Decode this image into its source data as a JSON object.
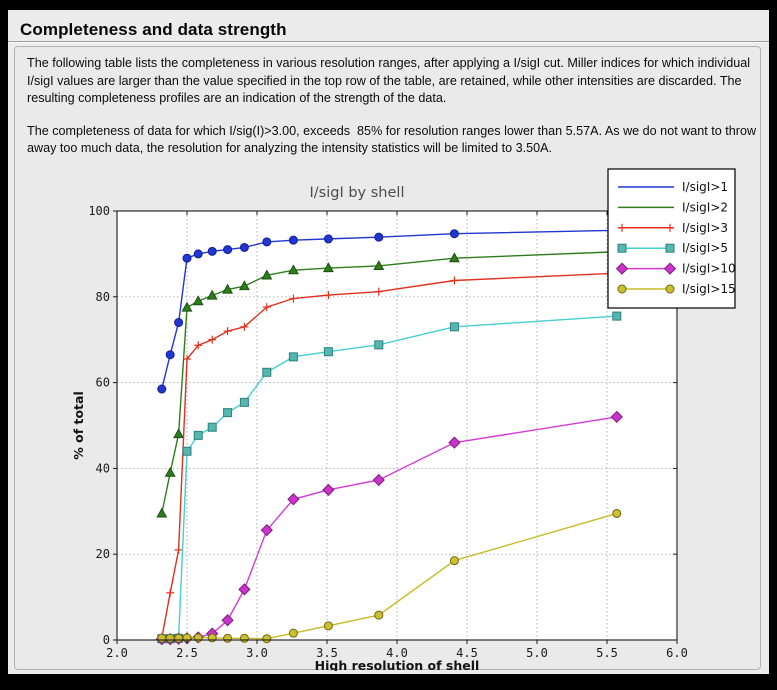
{
  "page": {
    "title": "Completeness and data strength",
    "paragraph1": "The following table lists the completeness in various resolution ranges, after applying a I/sigI cut. Miller indices for which individual I/sigI values are larger than the value specified in the top row of the table, are retained, while other intensities are discarded. The resulting completeness profiles are an indication of the strength of the data.",
    "paragraph2": "The completeness of data for which I/sig(I)>3.00, exceeds  85% for resolution ranges lower than 5.57A. As we do not want to throw away too much data, the resolution for analyzing the intensity statistics will be limited to 3.50A."
  },
  "chart_data": {
    "type": "line",
    "title": "I/sigI by shell",
    "xlabel": "High resolution of shell",
    "ylabel": "% of total",
    "xlim": [
      2.0,
      6.0
    ],
    "ylim": [
      0,
      100
    ],
    "xtick_labels": [
      "2.0",
      "2.5",
      "3.0",
      "3.5",
      "4.0",
      "4.5",
      "5.0",
      "5.5",
      "6.0"
    ],
    "ytick_labels": [
      "0",
      "20",
      "40",
      "60",
      "80",
      "100"
    ],
    "grid": true,
    "legend_position": "upper right",
    "x": [
      2.32,
      2.38,
      2.44,
      2.5,
      2.58,
      2.68,
      2.79,
      2.91,
      3.07,
      3.26,
      3.51,
      3.87,
      4.41,
      5.57
    ],
    "series": [
      {
        "name": "I/sigI>1",
        "color": "#2136d4",
        "marker": "circle",
        "marker_fill": "#2136d4",
        "marker_edge": "#101f8e",
        "legend_marker": false,
        "values": [
          58.5,
          66.5,
          74,
          89,
          90,
          90.6,
          91,
          91.5,
          92.8,
          93.2,
          93.5,
          93.9,
          94.7,
          95.5
        ]
      },
      {
        "name": "I/sigI>2",
        "color": "#2e7d1b",
        "marker": "triangle",
        "marker_fill": "#2e7d1b",
        "marker_edge": "#1c4f10",
        "legend_marker": false,
        "values": [
          29.5,
          39,
          48,
          77.5,
          79,
          80.3,
          81.7,
          82.5,
          85,
          86.2,
          86.7,
          87.2,
          89,
          90.5
        ]
      },
      {
        "name": "I/sigI>3",
        "color": "#e2301d",
        "marker": "plus",
        "marker_fill": "#e2301d",
        "marker_edge": "#e2301d",
        "legend_marker": true,
        "values": [
          0.5,
          11,
          21,
          65.5,
          68.7,
          70,
          72,
          73,
          77.6,
          79.6,
          80.4,
          81.2,
          83.8,
          85.5
        ]
      },
      {
        "name": "I/sigI>5",
        "color": "#45cfcf",
        "marker": "square",
        "marker_fill": "#55b7af",
        "marker_edge": "#2b827b",
        "legend_marker": true,
        "values": [
          0.3,
          0.3,
          0.4,
          44,
          47.7,
          49.6,
          53,
          55.4,
          62.4,
          66,
          67.2,
          68.8,
          73,
          75.5
        ]
      },
      {
        "name": "I/sigI>10",
        "color": "#d53ad5",
        "marker": "diamond",
        "marker_fill": "#c935c9",
        "marker_edge": "#7e187e",
        "legend_marker": true,
        "values": [
          0.2,
          0.2,
          0.3,
          0.4,
          0.6,
          1.5,
          4.6,
          11.8,
          25.6,
          32.8,
          35,
          37.3,
          46,
          52
        ]
      },
      {
        "name": "I/sigI>15",
        "color": "#c6bc25",
        "marker": "circle",
        "marker_fill": "#ccc032",
        "marker_edge": "#6f6410",
        "legend_marker": true,
        "values": [
          0.4,
          0.4,
          0.4,
          0.5,
          0.5,
          0.5,
          0.4,
          0.4,
          0.3,
          1.6,
          3.3,
          5.8,
          18.5,
          29.5
        ]
      }
    ]
  },
  "colors": {
    "frame": "#000000",
    "window_bg": "#ececec",
    "panel_bg": "#eaeaea",
    "plot_bg": "#ffffff",
    "grid": "#ababab",
    "spine": "#1a1a1a"
  }
}
